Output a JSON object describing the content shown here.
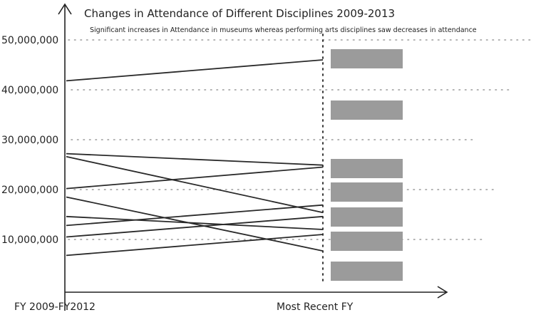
{
  "chart_data": {
    "type": "line",
    "title": "Changes in Attendance of Different Disciplines 2009-2013",
    "subtitle": "Significant increases in Attendance in museums whereas performing arts disciplines saw decreases in attendance",
    "categories": [
      "FY 2009-FY2012",
      "Most Recent FY"
    ],
    "y_ticks": [
      "10,000,000",
      "20,000,000",
      "30,000,000",
      "40,000,000",
      "50,000,000"
    ],
    "y_tick_values": [
      10000000,
      20000000,
      30000000,
      40000000,
      50000000
    ],
    "ylim": [
      0,
      52000000
    ],
    "grid": true,
    "legend": "boxes-right",
    "series": [
      {
        "values": [
          41800000,
          46000000
        ]
      },
      {
        "values": [
          27200000,
          24900000
        ]
      },
      {
        "values": [
          26600000,
          15400000
        ]
      },
      {
        "values": [
          20200000,
          24500000
        ]
      },
      {
        "values": [
          18500000,
          7700000
        ]
      },
      {
        "values": [
          14600000,
          12000000
        ]
      },
      {
        "values": [
          12800000,
          16900000
        ]
      },
      {
        "values": [
          10500000,
          14600000
        ]
      },
      {
        "values": [
          6800000,
          11000000
        ]
      }
    ],
    "legend_boxes": 7
  }
}
